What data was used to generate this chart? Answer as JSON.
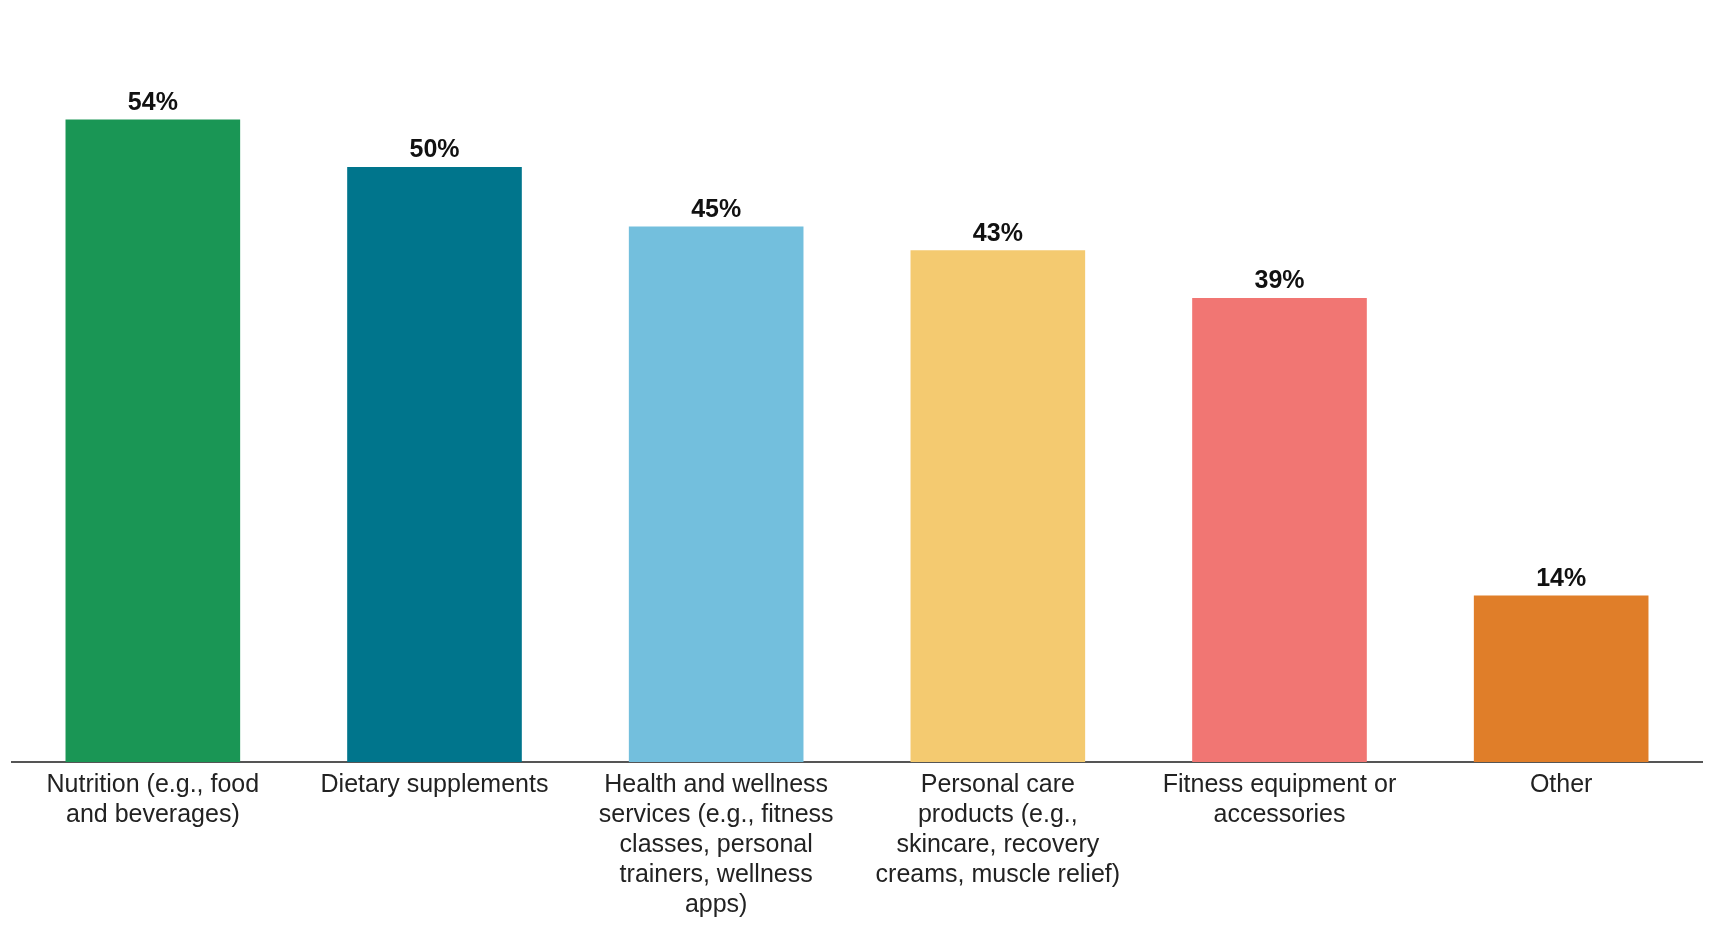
{
  "chart_data": {
    "type": "bar",
    "categories": [
      "Nutrition (e.g., food and beverages)",
      "Dietary supplements",
      "Health and wellness services (e.g., fitness classes, personal trainers, wellness apps)",
      "Personal care products (e.g., skincare, recovery creams, muscle relief)",
      "Fitness equipment or accessories",
      "Other"
    ],
    "values": [
      54,
      50,
      45,
      43,
      39,
      14
    ],
    "colors": [
      "#1a9655",
      "#00758c",
      "#73bfdd",
      "#f4ca70",
      "#f17673",
      "#e07e29"
    ],
    "value_labels": [
      "54%",
      "50%",
      "45%",
      "43%",
      "39%",
      "14%"
    ],
    "grid": false,
    "legend": false
  }
}
